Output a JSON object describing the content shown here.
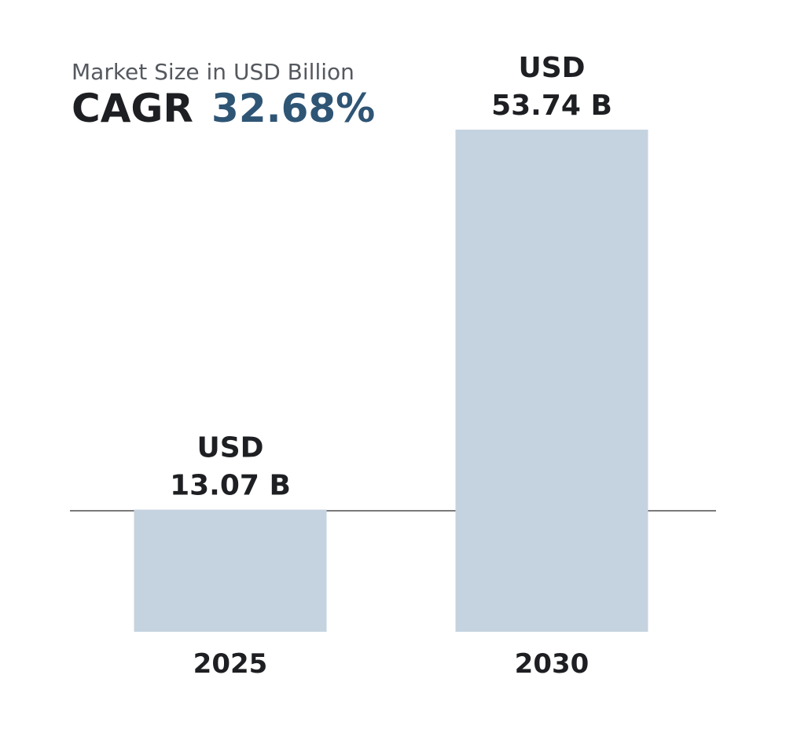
{
  "header": {
    "subtitle": "Market Size in USD Billion",
    "cagr_label": "CAGR",
    "cagr_value": "32.68%"
  },
  "colors": {
    "bar": "#c5d3e0",
    "accent": "#2f5575",
    "baseline": "#7a7a7a",
    "text": "#1e1f22"
  },
  "chart_data": {
    "type": "bar",
    "categories": [
      "2025",
      "2030"
    ],
    "values": [
      13.07,
      53.74
    ],
    "unit": "USD Billion",
    "value_labels": [
      [
        "USD",
        "13.07 B"
      ],
      [
        "USD",
        "53.74 B"
      ]
    ],
    "title": "",
    "subtitle": "Market Size in USD Billion",
    "xlabel": "",
    "ylabel": "",
    "grid": false,
    "legend": "none"
  }
}
